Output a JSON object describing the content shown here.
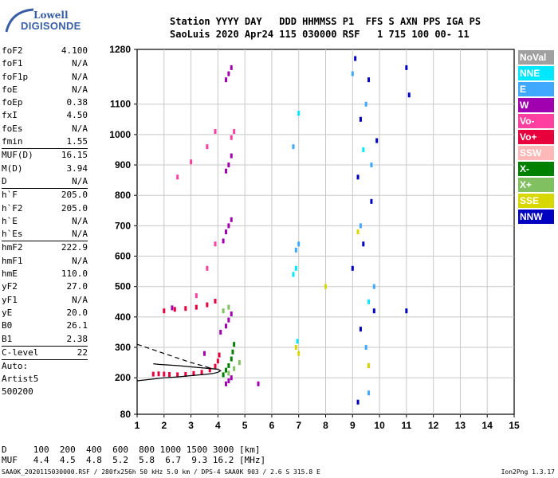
{
  "logo": {
    "top": "Lowell",
    "main": "DIGISONDE"
  },
  "header": {
    "line1": "Station YYYY DAY   DDD HHMMSS P1  FFS S AXN PPS IGA PS",
    "line2": "SaoLuis 2020 Apr24 115 030000 RSF   1 715 100 00- 11"
  },
  "params": [
    {
      "label": "foF2",
      "value": "4.100"
    },
    {
      "label": "foF1",
      "value": "N/A"
    },
    {
      "label": "foF1p",
      "value": "N/A"
    },
    {
      "label": "foE",
      "value": "N/A"
    },
    {
      "label": "foEp",
      "value": "0.38"
    },
    {
      "label": "fxI",
      "value": "4.50"
    },
    {
      "label": "foEs",
      "value": "N/A"
    },
    {
      "label": "fmin",
      "value": "1.55"
    },
    {
      "sep": true
    },
    {
      "label": "MUF(D)",
      "value": "16.15"
    },
    {
      "label": "M(D)",
      "value": "3.94"
    },
    {
      "label": "D",
      "value": "N/A"
    },
    {
      "sep": true
    },
    {
      "label": "h`F",
      "value": "205.0"
    },
    {
      "label": "h`F2",
      "value": "205.0"
    },
    {
      "label": "h`E",
      "value": "N/A"
    },
    {
      "label": "h`Es",
      "value": "N/A"
    },
    {
      "sep": true
    },
    {
      "label": "hmF2",
      "value": "222.9"
    },
    {
      "label": "hmF1",
      "value": "N/A"
    },
    {
      "label": "hmE",
      "value": "110.0"
    },
    {
      "label": "yF2",
      "value": "27.0"
    },
    {
      "label": "yF1",
      "value": "N/A"
    },
    {
      "label": "yE",
      "value": "20.0"
    },
    {
      "label": "B0",
      "value": "26.1"
    },
    {
      "label": "B1",
      "value": "2.38"
    },
    {
      "sep": true
    },
    {
      "label": "C-level",
      "value": "22"
    },
    {
      "sep": true
    }
  ],
  "auto": [
    "Auto:",
    "Artist5",
    "500200"
  ],
  "legend": [
    {
      "label": "NoVal",
      "bg": "#a0a0a0",
      "fg": "#ffffff"
    },
    {
      "label": "NNE",
      "bg": "#00e8ff",
      "fg": "#ffffff"
    },
    {
      "label": "E",
      "bg": "#40a8ff",
      "fg": "#ffffff"
    },
    {
      "label": "W",
      "bg": "#a000b0",
      "fg": "#ffffff"
    },
    {
      "label": "Vo-",
      "bg": "#ff40a0",
      "fg": "#ffffff"
    },
    {
      "label": "Vo+",
      "bg": "#e8003c",
      "fg": "#ffffff"
    },
    {
      "label": "SSW",
      "bg": "#ffb8b8",
      "fg": "#ffffff"
    },
    {
      "label": "X-",
      "bg": "#008000",
      "fg": "#ffffff"
    },
    {
      "label": "X+",
      "bg": "#80c060",
      "fg": "#ffffff"
    },
    {
      "label": "SSE",
      "bg": "#d8d800",
      "fg": "#ffffff"
    },
    {
      "label": "NNW",
      "bg": "#0000c0",
      "fg": "#ffffff"
    }
  ],
  "footer": {
    "d_row": "D     100  200  400  600  800 1000 1500 3000 [km]",
    "muf_row": "MUF   4.4  4.5  4.8  5.2  5.8  6.7  9.3 16.2 [MHz]",
    "info": "SAA0K_2020115030000.RSF / 280fx256h 50 kHz 5.0 km / DPS-4 SAA0K 903 / 2.6 S 315.8 E",
    "version": "Ion2Png 1.3.17"
  },
  "chart_data": {
    "type": "scatter",
    "xlim": [
      1,
      15
    ],
    "ylim": [
      80,
      1280
    ],
    "x_ticks": [
      1,
      2,
      3,
      4,
      5,
      6,
      7,
      8,
      9,
      10,
      11,
      12,
      13,
      14,
      15
    ],
    "y_ticks": [
      80,
      200,
      300,
      400,
      500,
      600,
      700,
      800,
      900,
      1000,
      1100,
      1280
    ],
    "grid": true,
    "series": [
      {
        "name": "Vo+",
        "color": "#e8003c",
        "points": [
          [
            1.6,
            212
          ],
          [
            1.8,
            213
          ],
          [
            2.0,
            212
          ],
          [
            2.2,
            211
          ],
          [
            2.5,
            210
          ],
          [
            2.8,
            211
          ],
          [
            3.1,
            214
          ],
          [
            3.4,
            218
          ],
          [
            3.7,
            226
          ],
          [
            3.9,
            238
          ],
          [
            4.0,
            255
          ],
          [
            4.05,
            275
          ],
          [
            2.0,
            420
          ],
          [
            2.4,
            425
          ],
          [
            2.8,
            428
          ],
          [
            3.2,
            432
          ],
          [
            3.6,
            440
          ],
          [
            3.9,
            452
          ]
        ]
      },
      {
        "name": "X-",
        "color": "#008000",
        "points": [
          [
            4.2,
            210
          ],
          [
            4.3,
            225
          ],
          [
            4.4,
            240
          ],
          [
            4.5,
            262
          ],
          [
            4.55,
            285
          ],
          [
            4.6,
            310
          ]
        ]
      },
      {
        "name": "X+",
        "color": "#80c060",
        "points": [
          [
            4.4,
            215
          ],
          [
            4.6,
            230
          ],
          [
            4.8,
            250
          ],
          [
            4.2,
            420
          ],
          [
            4.4,
            432
          ]
        ]
      },
      {
        "name": "W",
        "color": "#a000b0",
        "points": [
          [
            4.3,
            180
          ],
          [
            4.4,
            190
          ],
          [
            4.5,
            200
          ],
          [
            4.1,
            350
          ],
          [
            4.3,
            370
          ],
          [
            4.4,
            390
          ],
          [
            4.5,
            410
          ],
          [
            4.2,
            650
          ],
          [
            4.3,
            680
          ],
          [
            4.4,
            700
          ],
          [
            4.5,
            720
          ],
          [
            4.3,
            880
          ],
          [
            4.4,
            900
          ],
          [
            4.5,
            930
          ],
          [
            4.3,
            1180
          ],
          [
            4.4,
            1200
          ],
          [
            4.5,
            1220
          ],
          [
            2.3,
            430
          ],
          [
            3.5,
            280
          ],
          [
            5.5,
            180
          ]
        ]
      },
      {
        "name": "E",
        "color": "#40a8ff",
        "points": [
          [
            9.0,
            1200
          ],
          [
            9.5,
            1100
          ],
          [
            9.7,
            900
          ],
          [
            9.3,
            700
          ],
          [
            9.8,
            500
          ],
          [
            9.5,
            300
          ],
          [
            9.6,
            150
          ],
          [
            6.9,
            620
          ],
          [
            7.0,
            640
          ],
          [
            6.8,
            960
          ]
        ]
      },
      {
        "name": "NNE",
        "color": "#00e8ff",
        "points": [
          [
            6.8,
            540
          ],
          [
            6.9,
            560
          ],
          [
            7.0,
            1070
          ],
          [
            6.95,
            320
          ],
          [
            9.4,
            950
          ],
          [
            9.6,
            450
          ]
        ]
      },
      {
        "name": "NNW",
        "color": "#0000c0",
        "points": [
          [
            9.1,
            1250
          ],
          [
            9.6,
            1180
          ],
          [
            9.3,
            1050
          ],
          [
            9.9,
            980
          ],
          [
            9.2,
            860
          ],
          [
            9.7,
            780
          ],
          [
            9.4,
            640
          ],
          [
            9.0,
            560
          ],
          [
            9.8,
            420
          ],
          [
            9.3,
            360
          ],
          [
            9.6,
            240
          ],
          [
            9.2,
            120
          ],
          [
            11.0,
            1220
          ],
          [
            11.1,
            1130
          ],
          [
            11.0,
            420
          ]
        ]
      },
      {
        "name": "SSE",
        "color": "#d8d800",
        "points": [
          [
            6.9,
            300
          ],
          [
            7.0,
            280
          ],
          [
            9.2,
            680
          ],
          [
            9.6,
            240
          ],
          [
            8.0,
            500
          ]
        ]
      },
      {
        "name": "Vo-",
        "color": "#ff40a0",
        "points": [
          [
            3.2,
            470
          ],
          [
            3.6,
            560
          ],
          [
            3.9,
            640
          ],
          [
            2.5,
            860
          ],
          [
            3.0,
            910
          ],
          [
            3.6,
            960
          ],
          [
            3.9,
            1010
          ],
          [
            4.5,
            990
          ],
          [
            4.6,
            1010
          ]
        ]
      }
    ],
    "profile_curves": [
      {
        "name": "profile",
        "color": "#000000",
        "points": [
          [
            1.0,
            190
          ],
          [
            1.5,
            195
          ],
          [
            2.0,
            200
          ],
          [
            2.5,
            203
          ],
          [
            3.0,
            207
          ],
          [
            3.5,
            211
          ],
          [
            3.8,
            214
          ],
          [
            4.0,
            218
          ],
          [
            4.1,
            223
          ],
          [
            4.0,
            228
          ],
          [
            3.5,
            232
          ],
          [
            3.0,
            236
          ],
          [
            2.5,
            240
          ],
          [
            1.8,
            244
          ],
          [
            1.6,
            246
          ]
        ]
      },
      {
        "name": "topside",
        "color": "#000000",
        "dashed": true,
        "points": [
          [
            1.0,
            310
          ],
          [
            1.5,
            295
          ],
          [
            2.0,
            280
          ],
          [
            2.5,
            265
          ],
          [
            3.0,
            250
          ],
          [
            3.5,
            238
          ],
          [
            3.8,
            229
          ]
        ]
      }
    ]
  }
}
